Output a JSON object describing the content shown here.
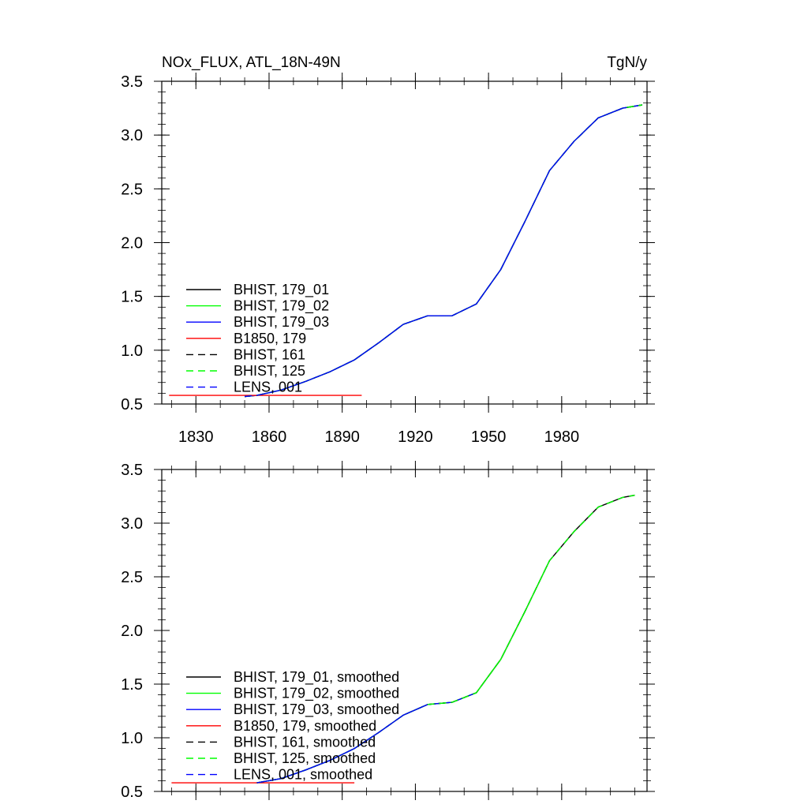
{
  "chart_data": [
    {
      "type": "line",
      "title": "NOx_FLUX, ATL_18N-49N",
      "units": "TgN/y",
      "xlim": [
        1816,
        2015
      ],
      "ylim": [
        0.5,
        3.5
      ],
      "x_ticks": [
        1830,
        1860,
        1890,
        1920,
        1950,
        1980
      ],
      "y_ticks": [
        "0.5",
        "1.0",
        "1.5",
        "2.0",
        "2.5",
        "3.0",
        "3.5"
      ],
      "x_tick_labels_shown": true,
      "grid": false,
      "legend_position": "lower-left",
      "legend": [
        {
          "label": "BHIST, 179_01",
          "color": "#000000",
          "dash": "solid"
        },
        {
          "label": "BHIST, 179_02",
          "color": "#00ff00",
          "dash": "solid"
        },
        {
          "label": "BHIST, 179_03",
          "color": "#0000ff",
          "dash": "solid"
        },
        {
          "label": "B1850, 179",
          "color": "#ff0000",
          "dash": "solid"
        },
        {
          "label": "BHIST, 161",
          "color": "#000000",
          "dash": "dashed"
        },
        {
          "label": "BHIST, 125",
          "color": "#00ff00",
          "dash": "dashed"
        },
        {
          "label": "LENS, 001",
          "color": "#0000ff",
          "dash": "dashed"
        }
      ],
      "series": [
        {
          "name": "BHIST, 179_01",
          "color": "#000000",
          "dash": "solid",
          "x": [
            1850,
            1855,
            1865,
            1875,
            1885,
            1895,
            1905,
            1915,
            1925,
            1935,
            1945,
            1955,
            1965,
            1975,
            1985,
            1995,
            2005,
            2013
          ],
          "y": [
            0.57,
            0.58,
            0.63,
            0.71,
            0.8,
            0.91,
            1.07,
            1.24,
            1.32,
            1.32,
            1.43,
            1.75,
            2.2,
            2.67,
            2.94,
            3.16,
            3.25,
            3.28
          ]
        },
        {
          "name": "BHIST, 179_02",
          "color": "#00ff00",
          "dash": "solid",
          "x": [
            1850,
            1855,
            1865,
            1875,
            1885,
            1895,
            1905,
            1915,
            1925,
            1935,
            1945,
            1955,
            1965,
            1975,
            1985,
            1995,
            2005,
            2013
          ],
          "y": [
            0.57,
            0.58,
            0.63,
            0.71,
            0.8,
            0.91,
            1.07,
            1.24,
            1.32,
            1.32,
            1.43,
            1.75,
            2.2,
            2.67,
            2.94,
            3.16,
            3.25,
            3.28
          ]
        },
        {
          "name": "BHIST, 179_03",
          "color": "#0000ff",
          "dash": "solid",
          "x": [
            1850,
            1855,
            1865,
            1875,
            1885,
            1895,
            1905,
            1915,
            1925,
            1935,
            1945,
            1955,
            1965,
            1975,
            1985,
            1995,
            2005,
            2013
          ],
          "y": [
            0.57,
            0.58,
            0.63,
            0.71,
            0.8,
            0.91,
            1.07,
            1.24,
            1.32,
            1.32,
            1.43,
            1.75,
            2.2,
            2.67,
            2.94,
            3.16,
            3.25,
            3.28
          ]
        },
        {
          "name": "B1850, 179",
          "color": "#ff0000",
          "dash": "solid",
          "x": [
            1819,
            1898
          ],
          "y": [
            0.58,
            0.58
          ]
        },
        {
          "name": "BHIST, 161",
          "color": "#000000",
          "dash": "dashed",
          "x": [
            1850,
            1855,
            1865,
            1875,
            1885,
            1895,
            1905,
            1915,
            1925,
            1935,
            1945,
            1955,
            1965,
            1975,
            1985,
            1995,
            2005,
            2013
          ],
          "y": [
            0.57,
            0.58,
            0.63,
            0.71,
            0.8,
            0.91,
            1.07,
            1.24,
            1.32,
            1.32,
            1.43,
            1.75,
            2.2,
            2.67,
            2.94,
            3.16,
            3.25,
            3.28
          ]
        },
        {
          "name": "BHIST, 125",
          "color": "#00ff00",
          "dash": "dashed",
          "x": [
            1850,
            1855,
            1865,
            1875,
            1885,
            1895,
            1905,
            1915,
            1925,
            1935,
            1945,
            1955,
            1965,
            1975,
            1985,
            1995,
            2005,
            2013
          ],
          "y": [
            0.57,
            0.58,
            0.63,
            0.71,
            0.8,
            0.91,
            1.07,
            1.24,
            1.32,
            1.32,
            1.43,
            1.75,
            2.2,
            2.67,
            2.94,
            3.16,
            3.25,
            3.28
          ]
        },
        {
          "name": "LENS, 001",
          "color": "#0000ff",
          "dash": "dashed",
          "x": [
            1850,
            1855,
            1865,
            1875,
            1885,
            1895,
            1905,
            1915,
            1925,
            1935,
            1945,
            1955,
            1965,
            1975,
            1985,
            1995,
            2005
          ],
          "y": [
            0.57,
            0.58,
            0.63,
            0.71,
            0.8,
            0.91,
            1.07,
            1.24,
            1.32,
            1.32,
            1.43,
            1.75,
            2.2,
            2.67,
            2.94,
            3.16,
            3.25
          ]
        }
      ]
    },
    {
      "type": "line",
      "title": "",
      "units": "",
      "xlim": [
        1816,
        2015
      ],
      "ylim": [
        0.5,
        3.5
      ],
      "x_ticks": [
        1830,
        1860,
        1890,
        1920,
        1950,
        1980
      ],
      "y_ticks": [
        "0.5",
        "1.0",
        "1.5",
        "2.0",
        "2.5",
        "3.0",
        "3.5"
      ],
      "x_tick_labels_shown": false,
      "grid": false,
      "legend_position": "lower-left",
      "legend": [
        {
          "label": "BHIST, 179_01, smoothed",
          "color": "#000000",
          "dash": "solid"
        },
        {
          "label": "BHIST, 179_02, smoothed",
          "color": "#00ff00",
          "dash": "solid"
        },
        {
          "label": "BHIST, 179_03, smoothed",
          "color": "#0000ff",
          "dash": "solid"
        },
        {
          "label": "B1850, 179, smoothed",
          "color": "#ff0000",
          "dash": "solid"
        },
        {
          "label": "BHIST, 161, smoothed",
          "color": "#000000",
          "dash": "dashed"
        },
        {
          "label": "BHIST, 125, smoothed",
          "color": "#00ff00",
          "dash": "dashed"
        },
        {
          "label": "LENS, 001, smoothed",
          "color": "#0000ff",
          "dash": "dashed"
        }
      ],
      "series": [
        {
          "name": "BHIST, 179_01, smoothed",
          "color": "#000000",
          "dash": "solid",
          "x": [
            1855,
            1865,
            1875,
            1885,
            1895,
            1905,
            1915,
            1925,
            1935,
            1945,
            1955,
            1965,
            1975,
            1985,
            1995,
            2005,
            2010
          ],
          "y": [
            0.58,
            0.62,
            0.7,
            0.79,
            0.9,
            1.05,
            1.21,
            1.31,
            1.33,
            1.42,
            1.73,
            2.18,
            2.65,
            2.92,
            3.15,
            3.24,
            3.26
          ]
        },
        {
          "name": "BHIST, 179_02, smoothed",
          "color": "#00ff00",
          "dash": "solid",
          "x": [
            1855,
            1865,
            1875,
            1885,
            1895,
            1905,
            1915,
            1925,
            1935,
            1945,
            1955,
            1965,
            1975
          ],
          "y": [
            0.58,
            0.62,
            0.7,
            0.79,
            0.9,
            1.05,
            1.21,
            1.31,
            1.33,
            1.42,
            1.73,
            2.18,
            2.65
          ]
        },
        {
          "name": "BHIST, 179_03, smoothed",
          "color": "#0000ff",
          "dash": "solid",
          "x": [
            1855,
            1865,
            1875,
            1885,
            1895,
            1905,
            1915,
            1925,
            1935,
            1945
          ],
          "y": [
            0.58,
            0.62,
            0.7,
            0.79,
            0.9,
            1.05,
            1.21,
            1.31,
            1.33,
            1.42
          ]
        },
        {
          "name": "B1850, 179, smoothed",
          "color": "#ff0000",
          "dash": "solid",
          "x": [
            1820,
            1895
          ],
          "y": [
            0.58,
            0.58
          ]
        },
        {
          "name": "BHIST, 161, smoothed",
          "color": "#000000",
          "dash": "dashed",
          "x": [
            1855,
            1865,
            1875,
            1885,
            1895,
            1905,
            1915,
            1925,
            1935,
            1945,
            1955,
            1965,
            1975,
            1985,
            1995,
            2005,
            2010
          ],
          "y": [
            0.58,
            0.62,
            0.7,
            0.79,
            0.9,
            1.05,
            1.21,
            1.31,
            1.33,
            1.42,
            1.73,
            2.18,
            2.65,
            2.92,
            3.15,
            3.24,
            3.26
          ]
        },
        {
          "name": "BHIST, 125, smoothed",
          "color": "#00ff00",
          "dash": "dashed",
          "x": [
            1855,
            1865,
            1875,
            1885,
            1895,
            1905,
            1915,
            1925,
            1935,
            1945,
            1955,
            1965,
            1975,
            1985,
            1995,
            2005,
            2010
          ],
          "y": [
            0.58,
            0.62,
            0.7,
            0.79,
            0.9,
            1.05,
            1.21,
            1.31,
            1.33,
            1.42,
            1.73,
            2.18,
            2.65,
            2.92,
            3.15,
            3.24,
            3.26
          ]
        },
        {
          "name": "LENS, 001, smoothed",
          "color": "#0000ff",
          "dash": "dashed",
          "x": [
            1855,
            1865,
            1875,
            1885,
            1895,
            1905,
            1915,
            1925
          ],
          "y": [
            0.58,
            0.62,
            0.7,
            0.79,
            0.9,
            1.05,
            1.21,
            1.31
          ]
        }
      ]
    }
  ]
}
